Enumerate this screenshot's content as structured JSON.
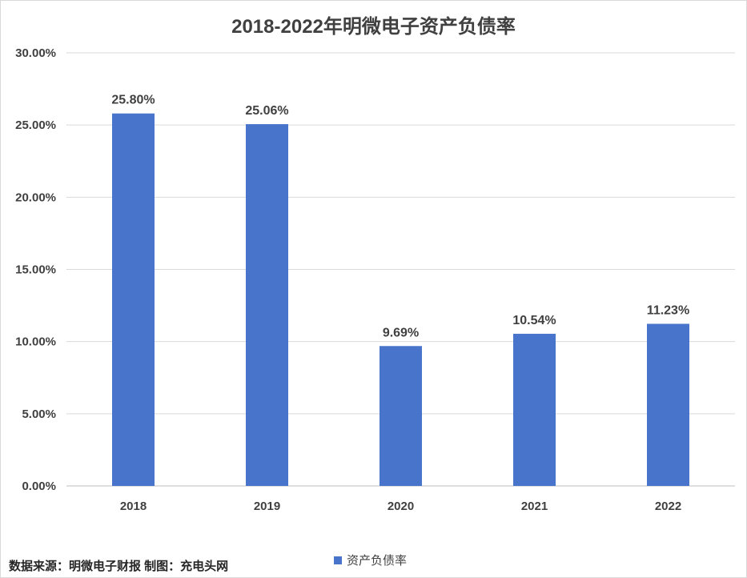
{
  "chart_data": {
    "type": "bar",
    "title": "2018-2022年明微电子资产负债率",
    "categories": [
      "2018",
      "2019",
      "2020",
      "2021",
      "2022"
    ],
    "series": [
      {
        "name": "资产负债率",
        "values": [
          25.8,
          25.06,
          9.69,
          10.54,
          11.23
        ],
        "labels": [
          "25.80%",
          "25.06%",
          "9.69%",
          "10.54%",
          "11.23%"
        ],
        "color": "#4874cb"
      }
    ],
    "yticks": [
      "0.00%",
      "5.00%",
      "10.00%",
      "15.00%",
      "20.00%",
      "25.00%",
      "30.00%"
    ],
    "ylim": [
      0,
      30
    ],
    "grid": true,
    "legend_position": "bottom"
  },
  "footer": {
    "source": "数据来源：明微电子财报 制图：充电头网"
  }
}
